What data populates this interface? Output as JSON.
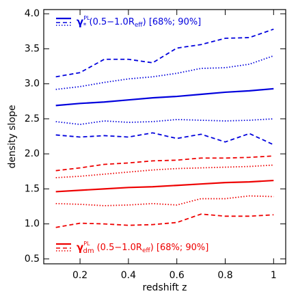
{
  "chart_data": {
    "type": "line",
    "x_label": "redshift z",
    "y_label": "density slope",
    "x": [
      0.1,
      0.2,
      0.3,
      0.4,
      0.5,
      0.6,
      0.7,
      0.8,
      0.9,
      1.0
    ],
    "xlim": [
      0.05,
      1.05
    ],
    "xticks": [
      0.2,
      0.4,
      0.6,
      0.8,
      1.0
    ],
    "ylim": [
      0.43,
      4.06
    ],
    "yticks": [
      0.5,
      {
        "value": 1,
        "label": "1.0"
      },
      1.5,
      {
        "value": 2,
        "label": "2.0"
      },
      2.5,
      {
        "value": 3,
        "label": "3.0"
      },
      3.5,
      {
        "value": 4,
        "label": "4.0"
      }
    ],
    "grid": false,
    "series": [
      {
        "color": "#0000dd",
        "style": "solid",
        "values": [
          2.69,
          2.72,
          2.74,
          2.77,
          2.8,
          2.82,
          2.85,
          2.88,
          2.9,
          2.93
        ]
      },
      {
        "color": "#0000dd",
        "style": "dotted",
        "values": [
          2.92,
          2.96,
          3.02,
          3.07,
          3.1,
          3.15,
          3.22,
          3.23,
          3.28,
          3.4
        ]
      },
      {
        "color": "#0000dd",
        "style": "dotted",
        "values": [
          2.46,
          2.42,
          2.47,
          2.45,
          2.46,
          2.49,
          2.48,
          2.47,
          2.48,
          2.5
        ]
      },
      {
        "color": "#0000dd",
        "style": "dashed",
        "values": [
          3.1,
          3.16,
          3.35,
          3.35,
          3.3,
          3.51,
          3.56,
          3.65,
          3.66,
          3.78
        ]
      },
      {
        "color": "#0000dd",
        "style": "dashed",
        "values": [
          2.27,
          2.24,
          2.26,
          2.24,
          2.3,
          2.22,
          2.28,
          2.17,
          2.29,
          2.13
        ]
      },
      {
        "color": "#ee0000",
        "style": "solid",
        "values": [
          1.46,
          1.48,
          1.5,
          1.52,
          1.53,
          1.55,
          1.57,
          1.59,
          1.6,
          1.62
        ]
      },
      {
        "color": "#ee0000",
        "style": "dotted",
        "values": [
          1.66,
          1.68,
          1.71,
          1.74,
          1.77,
          1.79,
          1.8,
          1.81,
          1.82,
          1.84
        ]
      },
      {
        "color": "#ee0000",
        "style": "dotted",
        "values": [
          1.29,
          1.28,
          1.26,
          1.27,
          1.29,
          1.27,
          1.36,
          1.36,
          1.4,
          1.39
        ]
      },
      {
        "color": "#ee0000",
        "style": "dashed",
        "values": [
          1.76,
          1.8,
          1.85,
          1.87,
          1.9,
          1.91,
          1.94,
          1.94,
          1.95,
          1.97
        ]
      },
      {
        "color": "#ee0000",
        "style": "dashed",
        "values": [
          0.95,
          1.01,
          1.0,
          0.98,
          0.99,
          1.02,
          1.14,
          1.11,
          1.11,
          1.13
        ]
      }
    ],
    "legend": [
      {
        "color": "#0000dd",
        "corner": "upper-left",
        "symbol": "γ",
        "sub": "*",
        "sup": "PL",
        "text": "(0.5−1.0R",
        "text_sub": "eff",
        "tail": ")  [68%; 90%]"
      },
      {
        "color": "#ee0000",
        "corner": "lower-left",
        "symbol": "γ",
        "sub": "dm",
        "sup": "PL",
        "text": "(0.5−1.0R",
        "text_sub": "eff",
        "tail": ")  [68%; 90%]"
      }
    ]
  }
}
